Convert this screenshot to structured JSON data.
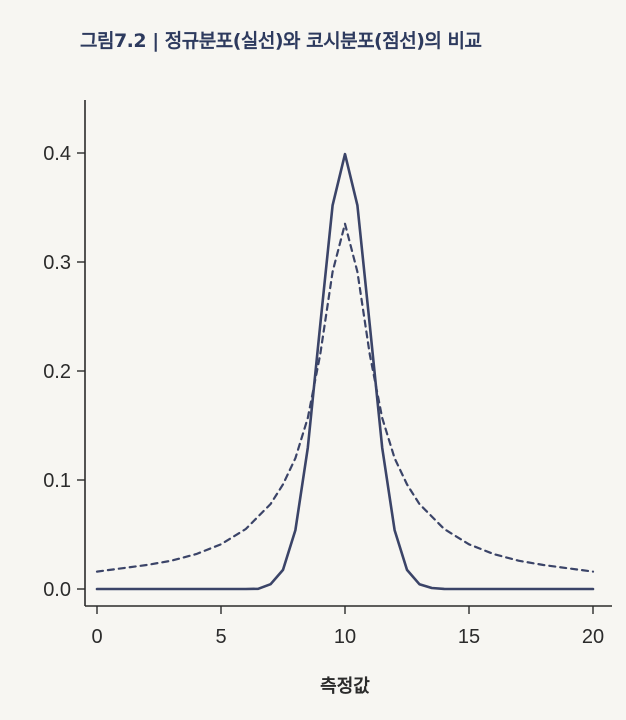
{
  "title": "그림7.2 | 정규분포(실선)와 코시분포(점선)의 비교",
  "chart_data": {
    "type": "line",
    "title": "그림7.2 | 정규분포(실선)와 코시분포(점선)의 비교",
    "xlabel": "측정값",
    "ylabel": "",
    "xlim": [
      0,
      20
    ],
    "ylim": [
      0,
      0.4
    ],
    "x_ticks": [
      0,
      5,
      10,
      15,
      20
    ],
    "y_ticks": [
      0.0,
      0.1,
      0.2,
      0.3,
      0.4
    ],
    "x_tick_labels": [
      "0",
      "5",
      "10",
      "15",
      "20"
    ],
    "y_tick_labels": [
      "0.0",
      "0.1",
      "0.2",
      "0.3",
      "0.4"
    ],
    "grid": false,
    "legend": "none",
    "colors": {
      "curve": "#3b4468",
      "axis": "#2b2b2b"
    },
    "series": [
      {
        "style": "solid",
        "x": [
          0,
          1,
          2,
          3,
          4,
          5,
          6,
          6.5,
          7,
          7.5,
          8,
          8.5,
          9,
          9.5,
          10,
          10.5,
          11,
          11.5,
          12,
          12.5,
          13,
          13.5,
          14,
          15,
          16,
          17,
          18,
          19,
          20
        ],
        "values": [
          0.0,
          0.0,
          0.0,
          0.0,
          0.0,
          0.0,
          0.0,
          0.0002,
          0.0044,
          0.0175,
          0.054,
          0.1295,
          0.242,
          0.352,
          0.399,
          0.352,
          0.242,
          0.1295,
          0.054,
          0.0175,
          0.0044,
          0.0009,
          0.0001,
          0.0,
          0.0,
          0.0,
          0.0,
          0.0,
          0.0
        ]
      },
      {
        "style": "dashed",
        "x": [
          0,
          1,
          2,
          3,
          4,
          5,
          6,
          7,
          7.5,
          8,
          8.5,
          9,
          9.5,
          10,
          10.5,
          11,
          11.5,
          12,
          12.5,
          13,
          14,
          15,
          16,
          17,
          18,
          19,
          20
        ],
        "values": [
          0.016,
          0.019,
          0.022,
          0.026,
          0.032,
          0.041,
          0.055,
          0.078,
          0.096,
          0.12,
          0.157,
          0.215,
          0.291,
          0.335,
          0.291,
          0.215,
          0.157,
          0.12,
          0.096,
          0.078,
          0.055,
          0.041,
          0.032,
          0.026,
          0.022,
          0.019,
          0.016
        ]
      }
    ]
  }
}
